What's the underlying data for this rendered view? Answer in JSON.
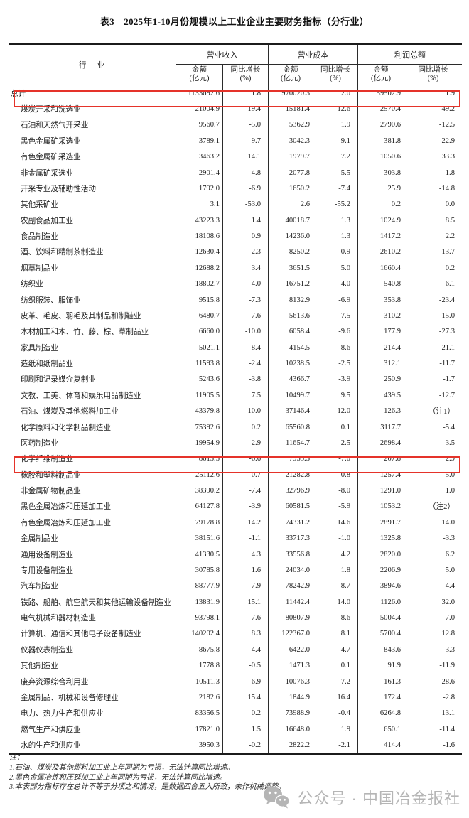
{
  "title": "表3　2025年1-10月份规模以上工业企业主要财务指标（分行业）",
  "colors": {
    "highlight": "#e5332a",
    "border": "#2b2b2b",
    "footer_gray": "#b5b5b5"
  },
  "table": {
    "industry_header": "行　业",
    "groups": [
      {
        "label": "营业收入"
      },
      {
        "label": "营业成本"
      },
      {
        "label": "利润总额"
      }
    ],
    "sub_headers": {
      "amount_l1": "金额",
      "amount_l2": "(亿元)",
      "growth_l1": "同比增长",
      "growth_l2": "(%)"
    },
    "rows": [
      {
        "industry": "总计",
        "revenue": "1133692.6",
        "revenue_growth": "1.8",
        "cost": "970020.3",
        "cost_growth": "2.0",
        "profit": "59502.9",
        "profit_growth": "1.9",
        "total": true,
        "highlight": false
      },
      {
        "industry": "煤炭开采和洗选业",
        "revenue": "21004.9",
        "revenue_growth": "-19.4",
        "cost": "15181.4",
        "cost_growth": "-12.6",
        "profit": "2570.4",
        "profit_growth": "-49.2",
        "total": false,
        "highlight": false
      },
      {
        "industry": "石油和天然气开采业",
        "revenue": "9560.7",
        "revenue_growth": "-5.0",
        "cost": "5362.9",
        "cost_growth": "1.9",
        "profit": "2790.6",
        "profit_growth": "-12.5",
        "total": false,
        "highlight": false
      },
      {
        "industry": "黑色金属矿采选业",
        "revenue": "3789.1",
        "revenue_growth": "-9.7",
        "cost": "3042.3",
        "cost_growth": "-9.1",
        "profit": "381.8",
        "profit_growth": "-22.9",
        "total": false,
        "highlight": true
      },
      {
        "industry": "有色金属矿采选业",
        "revenue": "3463.2",
        "revenue_growth": "14.1",
        "cost": "1979.7",
        "cost_growth": "7.2",
        "profit": "1050.6",
        "profit_growth": "33.3",
        "total": false,
        "highlight": false
      },
      {
        "industry": "非金属矿采选业",
        "revenue": "2901.4",
        "revenue_growth": "-4.8",
        "cost": "2077.8",
        "cost_growth": "-5.5",
        "profit": "303.8",
        "profit_growth": "-1.8",
        "total": false,
        "highlight": false
      },
      {
        "industry": "开采专业及辅助性活动",
        "revenue": "1792.0",
        "revenue_growth": "-6.9",
        "cost": "1650.2",
        "cost_growth": "-7.4",
        "profit": "25.9",
        "profit_growth": "-14.8",
        "total": false,
        "highlight": false
      },
      {
        "industry": "其他采矿业",
        "revenue": "3.1",
        "revenue_growth": "-53.0",
        "cost": "2.6",
        "cost_growth": "-55.2",
        "profit": "0.2",
        "profit_growth": "0.0",
        "total": false,
        "highlight": false
      },
      {
        "industry": "农副食品加工业",
        "revenue": "43223.3",
        "revenue_growth": "1.4",
        "cost": "40018.7",
        "cost_growth": "1.3",
        "profit": "1024.9",
        "profit_growth": "8.5",
        "total": false,
        "highlight": false
      },
      {
        "industry": "食品制造业",
        "revenue": "18108.6",
        "revenue_growth": "0.9",
        "cost": "14236.0",
        "cost_growth": "1.3",
        "profit": "1417.2",
        "profit_growth": "2.2",
        "total": false,
        "highlight": false
      },
      {
        "industry": "酒、饮料和精制茶制造业",
        "revenue": "12630.4",
        "revenue_growth": "-2.3",
        "cost": "8250.2",
        "cost_growth": "-0.9",
        "profit": "2610.2",
        "profit_growth": "13.7",
        "total": false,
        "highlight": false
      },
      {
        "industry": "烟草制品业",
        "revenue": "12688.2",
        "revenue_growth": "3.4",
        "cost": "3651.5",
        "cost_growth": "5.0",
        "profit": "1660.4",
        "profit_growth": "0.2",
        "total": false,
        "highlight": false
      },
      {
        "industry": "纺织业",
        "revenue": "18802.7",
        "revenue_growth": "-4.0",
        "cost": "16751.2",
        "cost_growth": "-4.0",
        "profit": "540.8",
        "profit_growth": "-6.1",
        "total": false,
        "highlight": false
      },
      {
        "industry": "纺织服装、服饰业",
        "revenue": "9515.8",
        "revenue_growth": "-7.3",
        "cost": "8132.9",
        "cost_growth": "-6.9",
        "profit": "353.8",
        "profit_growth": "-23.4",
        "total": false,
        "highlight": false
      },
      {
        "industry": "皮革、毛皮、羽毛及其制品和制鞋业",
        "revenue": "6480.7",
        "revenue_growth": "-7.6",
        "cost": "5613.6",
        "cost_growth": "-7.5",
        "profit": "310.2",
        "profit_growth": "-15.0",
        "total": false,
        "highlight": false
      },
      {
        "industry": "木材加工和木、竹、藤、棕、草制品业",
        "revenue": "6660.0",
        "revenue_growth": "-10.0",
        "cost": "6058.4",
        "cost_growth": "-9.6",
        "profit": "177.9",
        "profit_growth": "-27.3",
        "total": false,
        "highlight": false
      },
      {
        "industry": "家具制造业",
        "revenue": "5021.1",
        "revenue_growth": "-8.4",
        "cost": "4154.5",
        "cost_growth": "-8.6",
        "profit": "214.4",
        "profit_growth": "-21.1",
        "total": false,
        "highlight": false
      },
      {
        "industry": "造纸和纸制品业",
        "revenue": "11593.8",
        "revenue_growth": "-2.4",
        "cost": "10238.5",
        "cost_growth": "-2.5",
        "profit": "312.1",
        "profit_growth": "-11.7",
        "total": false,
        "highlight": false
      },
      {
        "industry": "印刷和记录媒介复制业",
        "revenue": "5243.6",
        "revenue_growth": "-3.8",
        "cost": "4366.7",
        "cost_growth": "-3.9",
        "profit": "250.9",
        "profit_growth": "-1.7",
        "total": false,
        "highlight": false
      },
      {
        "industry": "文教、工美、体育和娱乐用品制造业",
        "revenue": "11905.5",
        "revenue_growth": "7.5",
        "cost": "10499.7",
        "cost_growth": "9.5",
        "profit": "439.5",
        "profit_growth": "-12.7",
        "total": false,
        "highlight": false
      },
      {
        "industry": "石油、煤炭及其他燃料加工业",
        "revenue": "43379.8",
        "revenue_growth": "-10.0",
        "cost": "37146.4",
        "cost_growth": "-12.0",
        "profit": "-126.3",
        "profit_growth": "（注1）",
        "total": false,
        "highlight": false
      },
      {
        "industry": "化学原料和化学制品制造业",
        "revenue": "75392.6",
        "revenue_growth": "0.2",
        "cost": "65560.8",
        "cost_growth": "0.1",
        "profit": "3117.7",
        "profit_growth": "-5.4",
        "total": false,
        "highlight": false
      },
      {
        "industry": "医药制造业",
        "revenue": "19954.9",
        "revenue_growth": "-2.9",
        "cost": "11654.7",
        "cost_growth": "-2.5",
        "profit": "2698.4",
        "profit_growth": "-3.5",
        "total": false,
        "highlight": false
      },
      {
        "industry": "化学纤维制造业",
        "revenue": "8613.5",
        "revenue_growth": "-6.6",
        "cost": "7955.3",
        "cost_growth": "-7.0",
        "profit": "207.8",
        "profit_growth": "2.9",
        "total": false,
        "highlight": false
      },
      {
        "industry": "橡胶和塑料制品业",
        "revenue": "25112.6",
        "revenue_growth": "0.7",
        "cost": "21282.8",
        "cost_growth": "0.8",
        "profit": "1257.4",
        "profit_growth": "-5.0",
        "total": false,
        "highlight": false
      },
      {
        "industry": "非金属矿物制品业",
        "revenue": "38390.2",
        "revenue_growth": "-7.4",
        "cost": "32796.9",
        "cost_growth": "-8.0",
        "profit": "1291.0",
        "profit_growth": "1.0",
        "total": false,
        "highlight": false
      },
      {
        "industry": "黑色金属冶炼和压延加工业",
        "revenue": "64127.8",
        "revenue_growth": "-3.9",
        "cost": "60581.5",
        "cost_growth": "-5.9",
        "profit": "1053.2",
        "profit_growth": "（注2）",
        "total": false,
        "highlight": true
      },
      {
        "industry": "有色金属冶炼和压延加工业",
        "revenue": "79178.8",
        "revenue_growth": "14.2",
        "cost": "74331.2",
        "cost_growth": "14.6",
        "profit": "2891.7",
        "profit_growth": "14.0",
        "total": false,
        "highlight": false
      },
      {
        "industry": "金属制品业",
        "revenue": "38151.6",
        "revenue_growth": "-1.1",
        "cost": "33717.3",
        "cost_growth": "-1.0",
        "profit": "1325.8",
        "profit_growth": "-3.3",
        "total": false,
        "highlight": false
      },
      {
        "industry": "通用设备制造业",
        "revenue": "41330.5",
        "revenue_growth": "4.3",
        "cost": "33556.8",
        "cost_growth": "4.2",
        "profit": "2820.0",
        "profit_growth": "6.2",
        "total": false,
        "highlight": false
      },
      {
        "industry": "专用设备制造业",
        "revenue": "30785.8",
        "revenue_growth": "1.6",
        "cost": "24034.0",
        "cost_growth": "1.8",
        "profit": "2206.9",
        "profit_growth": "5.0",
        "total": false,
        "highlight": false
      },
      {
        "industry": "汽车制造业",
        "revenue": "88777.9",
        "revenue_growth": "7.9",
        "cost": "78242.9",
        "cost_growth": "8.7",
        "profit": "3894.6",
        "profit_growth": "4.4",
        "total": false,
        "highlight": false
      },
      {
        "industry": "铁路、船舶、航空航天和其他运输设备制造业",
        "revenue": "13831.9",
        "revenue_growth": "15.1",
        "cost": "11442.4",
        "cost_growth": "14.0",
        "profit": "1126.0",
        "profit_growth": "32.0",
        "total": false,
        "highlight": false
      },
      {
        "industry": "电气机械和器材制造业",
        "revenue": "93798.1",
        "revenue_growth": "7.6",
        "cost": "80807.9",
        "cost_growth": "8.6",
        "profit": "5004.4",
        "profit_growth": "7.0",
        "total": false,
        "highlight": false
      },
      {
        "industry": "计算机、通信和其他电子设备制造业",
        "revenue": "140202.4",
        "revenue_growth": "8.3",
        "cost": "122367.0",
        "cost_growth": "8.1",
        "profit": "5700.4",
        "profit_growth": "12.8",
        "total": false,
        "highlight": false
      },
      {
        "industry": "仪器仪表制造业",
        "revenue": "8675.8",
        "revenue_growth": "4.4",
        "cost": "6422.0",
        "cost_growth": "4.7",
        "profit": "843.6",
        "profit_growth": "3.3",
        "total": false,
        "highlight": false
      },
      {
        "industry": "其他制造业",
        "revenue": "1778.8",
        "revenue_growth": "-0.5",
        "cost": "1471.3",
        "cost_growth": "0.1",
        "profit": "91.9",
        "profit_growth": "-11.9",
        "total": false,
        "highlight": false
      },
      {
        "industry": "废弃资源综合利用业",
        "revenue": "10511.3",
        "revenue_growth": "6.9",
        "cost": "10076.3",
        "cost_growth": "7.2",
        "profit": "161.3",
        "profit_growth": "28.6",
        "total": false,
        "highlight": false
      },
      {
        "industry": "金属制品、机械和设备修理业",
        "revenue": "2182.6",
        "revenue_growth": "15.4",
        "cost": "1844.9",
        "cost_growth": "16.4",
        "profit": "172.4",
        "profit_growth": "-2.8",
        "total": false,
        "highlight": false
      },
      {
        "industry": "电力、热力生产和供应业",
        "revenue": "83356.5",
        "revenue_growth": "0.2",
        "cost": "73988.9",
        "cost_growth": "-0.4",
        "profit": "6264.8",
        "profit_growth": "13.1",
        "total": false,
        "highlight": false
      },
      {
        "industry": "燃气生产和供应业",
        "revenue": "17821.0",
        "revenue_growth": "1.5",
        "cost": "16648.0",
        "cost_growth": "1.9",
        "profit": "650.1",
        "profit_growth": "-11.4",
        "total": false,
        "highlight": false
      },
      {
        "industry": "水的生产和供应业",
        "revenue": "3950.3",
        "revenue_growth": "-0.2",
        "cost": "2822.2",
        "cost_growth": "-2.1",
        "profit": "414.4",
        "profit_growth": "-1.6",
        "total": false,
        "highlight": false
      }
    ]
  },
  "notes": {
    "label": "注：",
    "items": [
      "1.石油、煤炭及其他燃料加工业上年同期为亏损，无法计算同比增速。",
      "2.黑色金属冶炼和压延加工业上年同期为亏损，无法计算同比增速。",
      "3.本表部分指标存在总计不等于分项之和情况，是数据四舍五入所致，未作机械调整。"
    ]
  },
  "footer": {
    "text": "公众号 · 中国冶金报社"
  }
}
